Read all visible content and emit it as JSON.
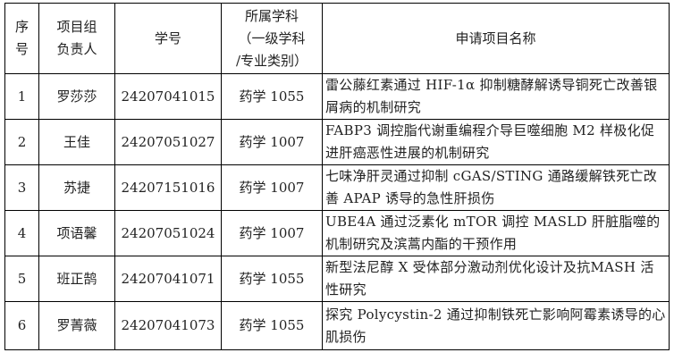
{
  "table": {
    "headers": [
      "序号",
      "项目组负责人",
      "学号",
      "所属学科（一级学科/专业类别）",
      "申请项目名称"
    ],
    "header_lines": {
      "seq": [
        "序",
        "号"
      ],
      "leader": [
        "项目组",
        "负责人"
      ],
      "id": [
        "学号"
      ],
      "discipline": [
        "所属学科",
        "（一级学科",
        "/专业类别）"
      ],
      "title": [
        "申请项目名称"
      ]
    },
    "rows": [
      {
        "seq": "1",
        "leader": "罗莎莎",
        "id": "24207041015",
        "discipline": "药学 1055",
        "title": "雷公藤红素通过 HIF-1α 抑制糖酵解诱导铜死亡改善银屑病的机制研究"
      },
      {
        "seq": "2",
        "leader": "王佳",
        "id": "24207051027",
        "discipline": "药学 1007",
        "title": "FABP3 调控脂代谢重编程介导巨噬细胞 M2 样极化促进肝癌恶性进展的机制研究"
      },
      {
        "seq": "3",
        "leader": "苏捷",
        "id": "24207151016",
        "discipline": "药学 1007",
        "title": "七味净肝灵通过抑制 cGAS/STING 通路缓解铁死亡改善 APAP 诱导的急性肝损伤"
      },
      {
        "seq": "4",
        "leader": "项语馨",
        "id": "24207051024",
        "discipline": "药学 1007",
        "title": "UBE4A 通过泛素化 mTOR 调控 MASLD 肝脏脂噬的机制研究及滨蒿内酯的干预作用"
      },
      {
        "seq": "5",
        "leader": "班正鹄",
        "id": "24207041071",
        "discipline": "药学 1055",
        "title": "新型法尼醇 X 受体部分激动剂优化设计及抗MASH 活性研究"
      },
      {
        "seq": "6",
        "leader": "罗菁薇",
        "id": "24207041073",
        "discipline": "药学 1055",
        "title": "探究 Polycystin-2 通过抑制铁死亡影响阿霉素诱导的心肌损伤"
      }
    ]
  }
}
